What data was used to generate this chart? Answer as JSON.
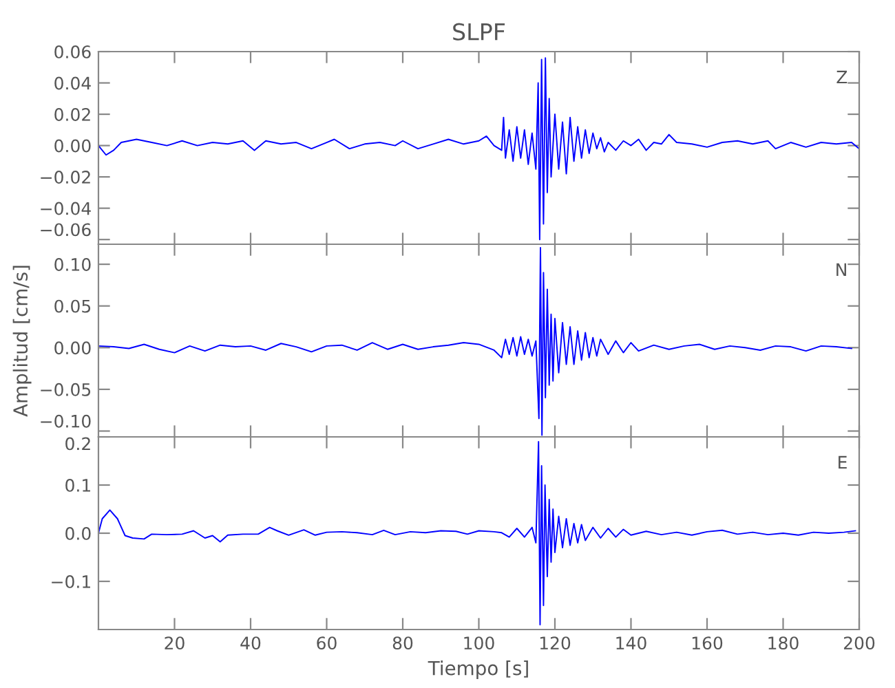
{
  "chart_data": [
    {
      "type": "line",
      "title": "SLPF",
      "annotations": [
        "Z"
      ],
      "tick_labels": "y",
      "xlim": [
        0,
        200
      ],
      "ylim": [
        -0.063,
        0.06
      ],
      "yticks": [
        {
          "value": -0.06,
          "label": "−0.06"
        },
        {
          "value": -0.04,
          "label": "−0.04"
        },
        {
          "value": -0.02,
          "label": "−0.02"
        },
        {
          "value": 0.0,
          "label": "0.00"
        },
        {
          "value": 0.02,
          "label": "0.02"
        },
        {
          "value": 0.04,
          "label": "0.04"
        },
        {
          "value": 0.06,
          "label": "0.06"
        }
      ],
      "xticks": [
        {
          "value": 20,
          "label": null
        },
        {
          "value": 40,
          "label": null
        },
        {
          "value": 60,
          "label": null
        },
        {
          "value": 80,
          "label": null
        },
        {
          "value": 100,
          "label": null
        },
        {
          "value": 120,
          "label": null
        },
        {
          "value": 140,
          "label": null
        },
        {
          "value": 160,
          "label": null
        },
        {
          "value": 180,
          "label": null
        },
        {
          "value": 200,
          "label": null
        }
      ],
      "grid": false,
      "legend": false,
      "series": [
        {
          "color": "#0000ff",
          "x": [
            0,
            2,
            4,
            6,
            10,
            14,
            18,
            22,
            26,
            30,
            34,
            38,
            41,
            44,
            48,
            52,
            56,
            60,
            62,
            66,
            70,
            74,
            78,
            80,
            84,
            88,
            92,
            96,
            100,
            102,
            104,
            106,
            106.5,
            107,
            108,
            109,
            110,
            111,
            112,
            113,
            114,
            115,
            115.6,
            116,
            116.5,
            117,
            117.5,
            118,
            118.5,
            119,
            120,
            121,
            122,
            123,
            124,
            125,
            126,
            127,
            128,
            129,
            130,
            131,
            132,
            133,
            134,
            136,
            138,
            140,
            142,
            144,
            146,
            148,
            150,
            152,
            156,
            160,
            164,
            168,
            172,
            176,
            178,
            182,
            186,
            190,
            194,
            198,
            200
          ],
          "values": [
            0.0,
            -0.006,
            -0.003,
            0.002,
            0.004,
            0.002,
            0.0,
            0.003,
            0.0,
            0.002,
            0.001,
            0.003,
            -0.003,
            0.003,
            0.001,
            0.002,
            -0.002,
            0.002,
            0.004,
            -0.002,
            0.001,
            0.002,
            0.0,
            0.003,
            -0.002,
            0.001,
            0.004,
            0.001,
            0.003,
            0.006,
            0.0,
            -0.003,
            0.018,
            -0.008,
            0.01,
            -0.01,
            0.012,
            -0.008,
            0.01,
            -0.012,
            0.008,
            -0.015,
            0.04,
            -0.06,
            0.055,
            -0.05,
            0.056,
            -0.03,
            0.03,
            -0.02,
            0.02,
            -0.015,
            0.015,
            -0.018,
            0.018,
            -0.01,
            0.012,
            -0.008,
            0.01,
            -0.005,
            0.008,
            -0.002,
            0.005,
            -0.004,
            0.002,
            -0.003,
            0.003,
            0.0,
            0.004,
            -0.003,
            0.002,
            0.001,
            0.007,
            0.002,
            0.001,
            -0.001,
            0.002,
            0.003,
            0.001,
            0.003,
            -0.002,
            0.002,
            -0.001,
            0.002,
            0.001,
            0.002,
            -0.002
          ]
        }
      ]
    },
    {
      "type": "line",
      "ylabel": "Amplitud [cm/s]",
      "annotations": [
        "N"
      ],
      "tick_labels": "y",
      "xlim": [
        0,
        200
      ],
      "ylim": [
        -0.107,
        0.124
      ],
      "yticks": [
        {
          "value": -0.1,
          "label": "−0.10"
        },
        {
          "value": -0.05,
          "label": "−0.05"
        },
        {
          "value": 0.0,
          "label": "0.00"
        },
        {
          "value": 0.05,
          "label": "0.05"
        },
        {
          "value": 0.1,
          "label": "0.10"
        }
      ],
      "xticks": [
        {
          "value": 20,
          "label": null
        },
        {
          "value": 40,
          "label": null
        },
        {
          "value": 60,
          "label": null
        },
        {
          "value": 80,
          "label": null
        },
        {
          "value": 100,
          "label": null
        },
        {
          "value": 120,
          "label": null
        },
        {
          "value": 140,
          "label": null
        },
        {
          "value": 160,
          "label": null
        },
        {
          "value": 180,
          "label": null
        },
        {
          "value": 200,
          "label": null
        }
      ],
      "grid": false,
      "legend": false,
      "series": [
        {
          "color": "#0000ff",
          "x": [
            0,
            4,
            8,
            12,
            16,
            20,
            24,
            28,
            32,
            36,
            40,
            44,
            48,
            52,
            56,
            60,
            64,
            68,
            72,
            76,
            80,
            84,
            88,
            92,
            96,
            100,
            104,
            106,
            107,
            108,
            109,
            110,
            111,
            112,
            113,
            114,
            115,
            115.8,
            116.2,
            116.6,
            117,
            117.5,
            118,
            118.5,
            119,
            119.5,
            120,
            121,
            122,
            123,
            124,
            125,
            126,
            127,
            128,
            129,
            130,
            131,
            132,
            134,
            136,
            138,
            140,
            142,
            146,
            150,
            154,
            158,
            162,
            166,
            170,
            174,
            178,
            182,
            186,
            190,
            194,
            198
          ],
          "values": [
            0.002,
            0.001,
            -0.001,
            0.004,
            -0.002,
            -0.006,
            0.002,
            -0.004,
            0.003,
            0.001,
            0.002,
            -0.003,
            0.005,
            0.001,
            -0.005,
            0.002,
            0.003,
            -0.003,
            0.006,
            -0.002,
            0.004,
            -0.002,
            0.001,
            0.003,
            0.006,
            0.004,
            -0.003,
            -0.012,
            0.01,
            -0.008,
            0.012,
            -0.01,
            0.013,
            -0.008,
            0.01,
            -0.01,
            0.008,
            -0.085,
            0.12,
            -0.105,
            0.09,
            -0.06,
            0.07,
            -0.045,
            0.04,
            -0.04,
            0.035,
            -0.03,
            0.03,
            -0.02,
            0.025,
            -0.02,
            0.02,
            -0.015,
            0.018,
            -0.012,
            0.012,
            -0.01,
            0.01,
            -0.008,
            0.008,
            -0.006,
            0.006,
            -0.004,
            0.003,
            -0.002,
            0.002,
            0.004,
            -0.002,
            0.002,
            0.0,
            -0.003,
            0.002,
            0.001,
            -0.004,
            0.002,
            0.001,
            -0.001
          ]
        }
      ]
    },
    {
      "type": "line",
      "xlabel": "Tiempo [s]",
      "annotations": [
        "E"
      ],
      "xlim": [
        0,
        200
      ],
      "ylim": [
        -0.2,
        0.2
      ],
      "yticks": [
        {
          "value": 0.2,
          "label": "0.2"
        },
        {
          "value": 0.1,
          "label": "0.1"
        },
        {
          "value": 0.0,
          "label": "0.0"
        },
        {
          "value": -0.1,
          "label": "−0.1"
        }
      ],
      "xticks": [
        20,
        40,
        60,
        80,
        100,
        120,
        140,
        160,
        180,
        200
      ],
      "grid": false,
      "legend": false,
      "series": [
        {
          "color": "#0000ff",
          "x": [
            0,
            1,
            3,
            5,
            7,
            9,
            12,
            14,
            18,
            22,
            25,
            28,
            30,
            32,
            34,
            38,
            42,
            45,
            47,
            50,
            54,
            57,
            60,
            64,
            68,
            72,
            75,
            78,
            82,
            86,
            90,
            94,
            97,
            100,
            104,
            106,
            108,
            110,
            112,
            114,
            115,
            115.7,
            116.1,
            116.5,
            117,
            117.4,
            118,
            118.5,
            119,
            119.5,
            120,
            121,
            122,
            123,
            124,
            125,
            126,
            127,
            128,
            130,
            132,
            134,
            136,
            138,
            140,
            144,
            148,
            152,
            156,
            160,
            164,
            168,
            172,
            176,
            180,
            184,
            188,
            192,
            196,
            199
          ],
          "values": [
            0.0,
            0.03,
            0.048,
            0.03,
            -0.005,
            -0.01,
            -0.012,
            -0.002,
            -0.003,
            -0.002,
            0.005,
            -0.01,
            -0.005,
            -0.018,
            -0.004,
            -0.002,
            -0.002,
            0.012,
            0.005,
            -0.004,
            0.007,
            -0.004,
            0.002,
            0.003,
            0.001,
            -0.003,
            0.006,
            -0.003,
            0.003,
            0.001,
            0.005,
            0.004,
            -0.002,
            0.005,
            0.003,
            0.001,
            -0.008,
            0.01,
            -0.008,
            0.012,
            -0.02,
            0.19,
            -0.19,
            0.14,
            -0.15,
            0.1,
            -0.09,
            0.07,
            -0.06,
            0.05,
            -0.04,
            0.035,
            -0.03,
            0.03,
            -0.025,
            0.02,
            -0.02,
            0.018,
            -0.015,
            0.012,
            -0.01,
            0.01,
            -0.008,
            0.008,
            -0.004,
            0.004,
            -0.003,
            0.002,
            -0.004,
            0.003,
            0.006,
            -0.002,
            0.002,
            -0.003,
            0.0,
            -0.004,
            0.002,
            0.0,
            0.002,
            0.005
          ]
        }
      ]
    }
  ]
}
